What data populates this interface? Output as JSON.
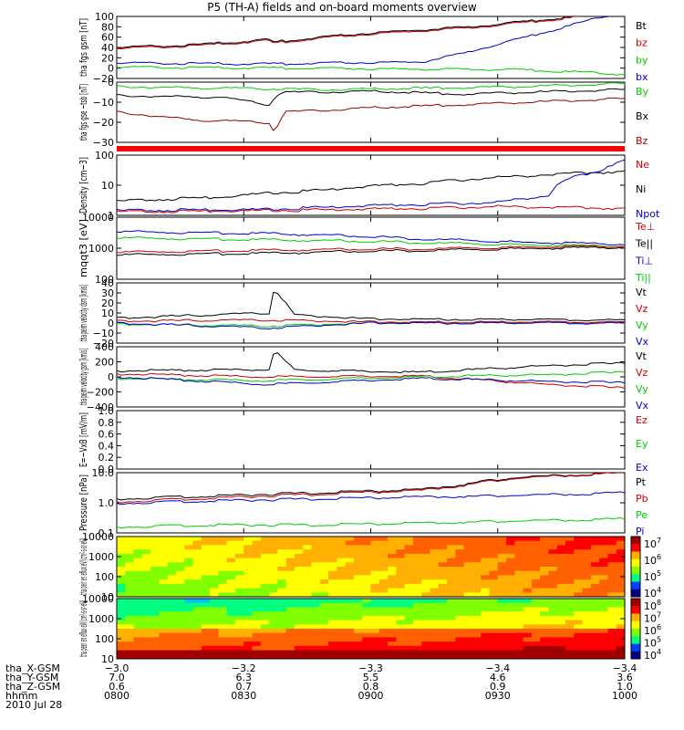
{
  "title": "P5 (TH-A) fields and on-board moments overview",
  "date_label": "2010 Jul 28",
  "colors": {
    "black": "#000000",
    "red": "#cc0000",
    "darkred": "#990000",
    "green": "#00cc00",
    "blue": "#0000cc"
  },
  "chart_data": [
    {
      "type": "line",
      "ylabel": "tha fgs gsm [nT]",
      "ylim": [
        -20,
        100
      ],
      "yticks": [
        "100",
        "80",
        "60",
        "40",
        "20",
        "0",
        "−20"
      ],
      "legend": [
        {
          "name": "Bt",
          "color": "#000000"
        },
        {
          "name": "bz",
          "color": "#cc0000"
        },
        {
          "name": "by",
          "color": "#00cc00"
        },
        {
          "name": "bx",
          "color": "#0000cc"
        }
      ],
      "series": [
        {
          "name": "Bt",
          "color": "#000000",
          "x": [
            0,
            0.15,
            0.3,
            0.31,
            0.32,
            0.5,
            0.7,
            0.85,
            1.0
          ],
          "y": [
            40,
            45,
            55,
            48,
            52,
            68,
            80,
            95,
            110
          ]
        },
        {
          "name": "bz",
          "color": "#cc0000",
          "x": [
            0,
            0.15,
            0.3,
            0.31,
            0.32,
            0.5,
            0.7,
            0.85,
            1.0
          ],
          "y": [
            38,
            43,
            53,
            46,
            50,
            66,
            78,
            93,
            108
          ]
        },
        {
          "name": "by",
          "color": "#00cc00",
          "x": [
            0,
            0.3,
            0.6,
            0.8,
            1.0
          ],
          "y": [
            2,
            0,
            -2,
            -3,
            -12
          ]
        },
        {
          "name": "bx",
          "color": "#0000cc",
          "x": [
            0,
            0.3,
            0.6,
            0.68,
            1.0
          ],
          "y": [
            10,
            8,
            12,
            28,
            110
          ]
        }
      ]
    },
    {
      "type": "line",
      "ylabel": "tha fgs gse −tsb [nT]",
      "ylim": [
        -35,
        5
      ],
      "yticks": [
        "0",
        "−10",
        "−20",
        "−30"
      ],
      "legend": [
        {
          "name": "By",
          "color": "#00cc00"
        },
        {
          "name": "Bx",
          "color": "#000000"
        },
        {
          "name": "Bz",
          "color": "#990000"
        }
      ],
      "series": [
        {
          "name": "By",
          "color": "#00cc00",
          "x": [
            0,
            0.2,
            0.4,
            0.6,
            0.8,
            1.0
          ],
          "y": [
            2,
            1,
            0,
            1,
            2,
            4
          ]
        },
        {
          "name": "Bx",
          "color": "#000000",
          "x": [
            0,
            0.2,
            0.3,
            0.32,
            0.5,
            0.68,
            1.0
          ],
          "y": [
            -4,
            -5,
            -10,
            -2,
            -1,
            -3,
            0
          ]
        },
        {
          "name": "Bz",
          "color": "#990000",
          "x": [
            0,
            0.15,
            0.3,
            0.31,
            0.33,
            0.5,
            0.68,
            1.0
          ],
          "y": [
            -15,
            -20,
            -22,
            -28,
            -15,
            -12,
            -10,
            -6
          ]
        }
      ]
    },
    {
      "type": "bar_strip",
      "description_color": "#ff0000"
    },
    {
      "type": "line",
      "ylabel": "Density [cm−3]",
      "ylim": [
        0.5,
        200
      ],
      "log": true,
      "yticks": [
        "100",
        "10",
        "1"
      ],
      "legend": [
        {
          "name": "Ne",
          "color": "#cc0000"
        },
        {
          "name": "Ni",
          "color": "#000000"
        },
        {
          "name": "Npot",
          "color": "#0000cc"
        }
      ],
      "series": [
        {
          "name": "Ni",
          "color": "#000000",
          "x": [
            0,
            0.2,
            0.4,
            0.6,
            0.8,
            1.0
          ],
          "y": [
            2,
            3,
            6,
            12,
            25,
            40
          ]
        },
        {
          "name": "Npot",
          "color": "#0000cc",
          "x": [
            0,
            0.3,
            0.45,
            0.6,
            0.75,
            0.85,
            0.95,
            1.0
          ],
          "y": [
            0.8,
            0.9,
            1.2,
            1.5,
            1.8,
            3.5,
            40,
            120
          ]
        },
        {
          "name": "Ne",
          "color": "#cc0000",
          "x": [
            0,
            0.3,
            0.45,
            0.6,
            0.75,
            1.0
          ],
          "y": [
            0.7,
            0.8,
            0.9,
            1.0,
            1.2,
            1.0
          ]
        }
      ]
    },
    {
      "type": "line",
      "ylabel": "mqqt3 [eV]",
      "ylim": [
        10,
        10000
      ],
      "log": true,
      "yticks": [
        "10000",
        "1000",
        "100"
      ],
      "legend": [
        {
          "name": "Te⊥",
          "color": "#cc0000"
        },
        {
          "name": "Te||",
          "color": "#000000"
        },
        {
          "name": "Ti⊥",
          "color": "#0000cc"
        },
        {
          "name": "Ti||",
          "color": "#00cc00"
        }
      ],
      "series": [
        {
          "name": "Ti⊥",
          "color": "#0000cc",
          "x": [
            0,
            0.3,
            0.6,
            0.8,
            1.0
          ],
          "y": [
            2000,
            1600,
            900,
            600,
            500
          ]
        },
        {
          "name": "Ti||",
          "color": "#00cc00",
          "x": [
            0,
            0.3,
            0.6,
            0.8,
            1.0
          ],
          "y": [
            1000,
            800,
            600,
            450,
            400
          ]
        },
        {
          "name": "Te⊥",
          "color": "#cc0000",
          "x": [
            0,
            0.3,
            0.6,
            0.8,
            1.0
          ],
          "y": [
            200,
            250,
            300,
            350,
            400
          ]
        },
        {
          "name": "Te||",
          "color": "#000000",
          "x": [
            0,
            0.3,
            0.6,
            0.8,
            1.0
          ],
          "y": [
            150,
            180,
            250,
            300,
            350
          ]
        }
      ]
    },
    {
      "type": "line",
      "ylabel": "tha peim velocity dsm [km/s]",
      "ylim": [
        -20,
        40
      ],
      "yticks": [
        "40",
        "30",
        "20",
        "10",
        "0",
        "−10",
        "−20"
      ],
      "legend": [
        {
          "name": "Vt",
          "color": "#000000"
        },
        {
          "name": "Vz",
          "color": "#cc0000"
        },
        {
          "name": "Vy",
          "color": "#00cc00"
        },
        {
          "name": "Vx",
          "color": "#0000cc"
        }
      ],
      "series": [
        {
          "name": "Vt",
          "color": "#000000",
          "x": [
            0,
            0.3,
            0.31,
            0.35,
            0.5,
            1.0
          ],
          "y": [
            5,
            10,
            35,
            8,
            4,
            3
          ]
        },
        {
          "name": "Vz",
          "color": "#cc0000",
          "x": [
            0,
            0.3,
            0.5,
            1.0
          ],
          "y": [
            2,
            3,
            1,
            1
          ]
        },
        {
          "name": "Vy",
          "color": "#00cc00",
          "x": [
            0,
            0.3,
            0.5,
            1.0
          ],
          "y": [
            -1,
            -3,
            0,
            0
          ]
        },
        {
          "name": "Vx",
          "color": "#0000cc",
          "x": [
            0,
            0.3,
            0.5,
            1.0
          ],
          "y": [
            0,
            -5,
            0,
            0
          ]
        }
      ]
    },
    {
      "type": "line",
      "ylabel": "tha peim velocity gsm [km/s]",
      "ylim": [
        -400,
        400
      ],
      "yticks": [
        "400",
        "200",
        "0",
        "−200",
        "−400"
      ],
      "legend": [
        {
          "name": "Vt",
          "color": "#000000"
        },
        {
          "name": "Vz",
          "color": "#cc0000"
        },
        {
          "name": "Vy",
          "color": "#00cc00"
        },
        {
          "name": "Vx",
          "color": "#0000cc"
        }
      ],
      "series": [
        {
          "name": "Vt",
          "color": "#000000",
          "x": [
            0,
            0.3,
            0.31,
            0.35,
            0.6,
            0.85,
            1.0
          ],
          "y": [
            80,
            100,
            350,
            90,
            60,
            150,
            180
          ]
        },
        {
          "name": "Vz",
          "color": "#cc0000",
          "x": [
            0,
            0.3,
            0.6,
            0.85,
            1.0
          ],
          "y": [
            40,
            0,
            10,
            -100,
            -150
          ]
        },
        {
          "name": "Vy",
          "color": "#00cc00",
          "x": [
            0,
            0.3,
            0.6,
            0.85,
            1.0
          ],
          "y": [
            -20,
            -50,
            0,
            30,
            60
          ]
        },
        {
          "name": "Vx",
          "color": "#0000cc",
          "x": [
            0,
            0.3,
            0.6,
            0.85,
            1.0
          ],
          "y": [
            0,
            -100,
            -20,
            -60,
            -80
          ]
        }
      ]
    },
    {
      "type": "line",
      "ylabel": "E=−VxB [mV/m]",
      "ylim": [
        0,
        1
      ],
      "yticks": [
        "1.0",
        "0.8",
        "0.6",
        "0.4",
        "0.2",
        "0.0"
      ],
      "legend": [
        {
          "name": "Ez",
          "color": "#cc0000"
        },
        {
          "name": "Ey",
          "color": "#00cc00"
        },
        {
          "name": "Ex",
          "color": "#0000cc"
        }
      ],
      "series": []
    },
    {
      "type": "line",
      "ylabel": "Pressure [nPa]",
      "ylim": [
        0.02,
        20
      ],
      "log": true,
      "yticks": [
        "10.0",
        "1.0",
        "0.1"
      ],
      "legend": [
        {
          "name": "Pt",
          "color": "#000000"
        },
        {
          "name": "Pb",
          "color": "#cc0000"
        },
        {
          "name": "Pe",
          "color": "#00cc00"
        },
        {
          "name": "Pi",
          "color": "#0000cc"
        }
      ],
      "series": [
        {
          "name": "Pt",
          "color": "#000000",
          "x": [
            0,
            0.2,
            0.4,
            0.6,
            0.68,
            0.8,
            1.0
          ],
          "y": [
            1.0,
            1.4,
            2.0,
            2.8,
            5,
            12,
            20
          ]
        },
        {
          "name": "Pb",
          "color": "#cc0000",
          "x": [
            0,
            0.2,
            0.4,
            0.6,
            0.68,
            0.8,
            1.0
          ],
          "y": [
            0.7,
            1.1,
            1.7,
            2.5,
            4.5,
            11,
            19
          ]
        },
        {
          "name": "Pi",
          "color": "#0000cc",
          "x": [
            0,
            0.2,
            0.4,
            0.6,
            0.8,
            1.0
          ],
          "y": [
            0.6,
            0.8,
            1.0,
            1.2,
            1.5,
            2.0
          ]
        },
        {
          "name": "Pe",
          "color": "#00cc00",
          "x": [
            0,
            0.2,
            0.4,
            0.6,
            0.8,
            1.0
          ],
          "y": [
            0.04,
            0.05,
            0.05,
            0.06,
            0.08,
            0.1
          ]
        }
      ]
    },
    {
      "type": "heatmap",
      "ylabel": "tha peir en eflux eV/(cm²-s-sr-eV)",
      "yticks": [
        "10000",
        "1000",
        "100",
        "10"
      ],
      "colorbar_ticks": [
        {
          "base": "10",
          "exp": "7"
        },
        {
          "base": "10",
          "exp": "6"
        },
        {
          "base": "10",
          "exp": "5"
        },
        {
          "base": "10",
          "exp": "4"
        }
      ]
    },
    {
      "type": "heatmap",
      "ylabel": "tha peer en eflux eV/(cm²-s-sr-eV)",
      "yticks": [
        "10000",
        "1000",
        "100",
        "10"
      ],
      "colorbar_ticks": [
        {
          "base": "10",
          "exp": "8"
        },
        {
          "base": "10",
          "exp": "7"
        },
        {
          "base": "10",
          "exp": "6"
        },
        {
          "base": "10",
          "exp": "5"
        },
        {
          "base": "10",
          "exp": "4"
        }
      ]
    }
  ],
  "ephemeris": {
    "rows": [
      {
        "label": "tha_X-GSM",
        "values": [
          "−3.0",
          "−3.2",
          "−3.3",
          "−3.4",
          "−3.4"
        ]
      },
      {
        "label": "tha_Y-GSM",
        "values": [
          "7.0",
          "6.3",
          "5.5",
          "4.6",
          "3.6"
        ]
      },
      {
        "label": "tha_Z-GSM",
        "values": [
          "0.6",
          "0.7",
          "0.8",
          "0.9",
          "1.0"
        ]
      },
      {
        "label": "hhmm",
        "values": [
          "0800",
          "0830",
          "0900",
          "0930",
          "1000"
        ]
      }
    ]
  }
}
